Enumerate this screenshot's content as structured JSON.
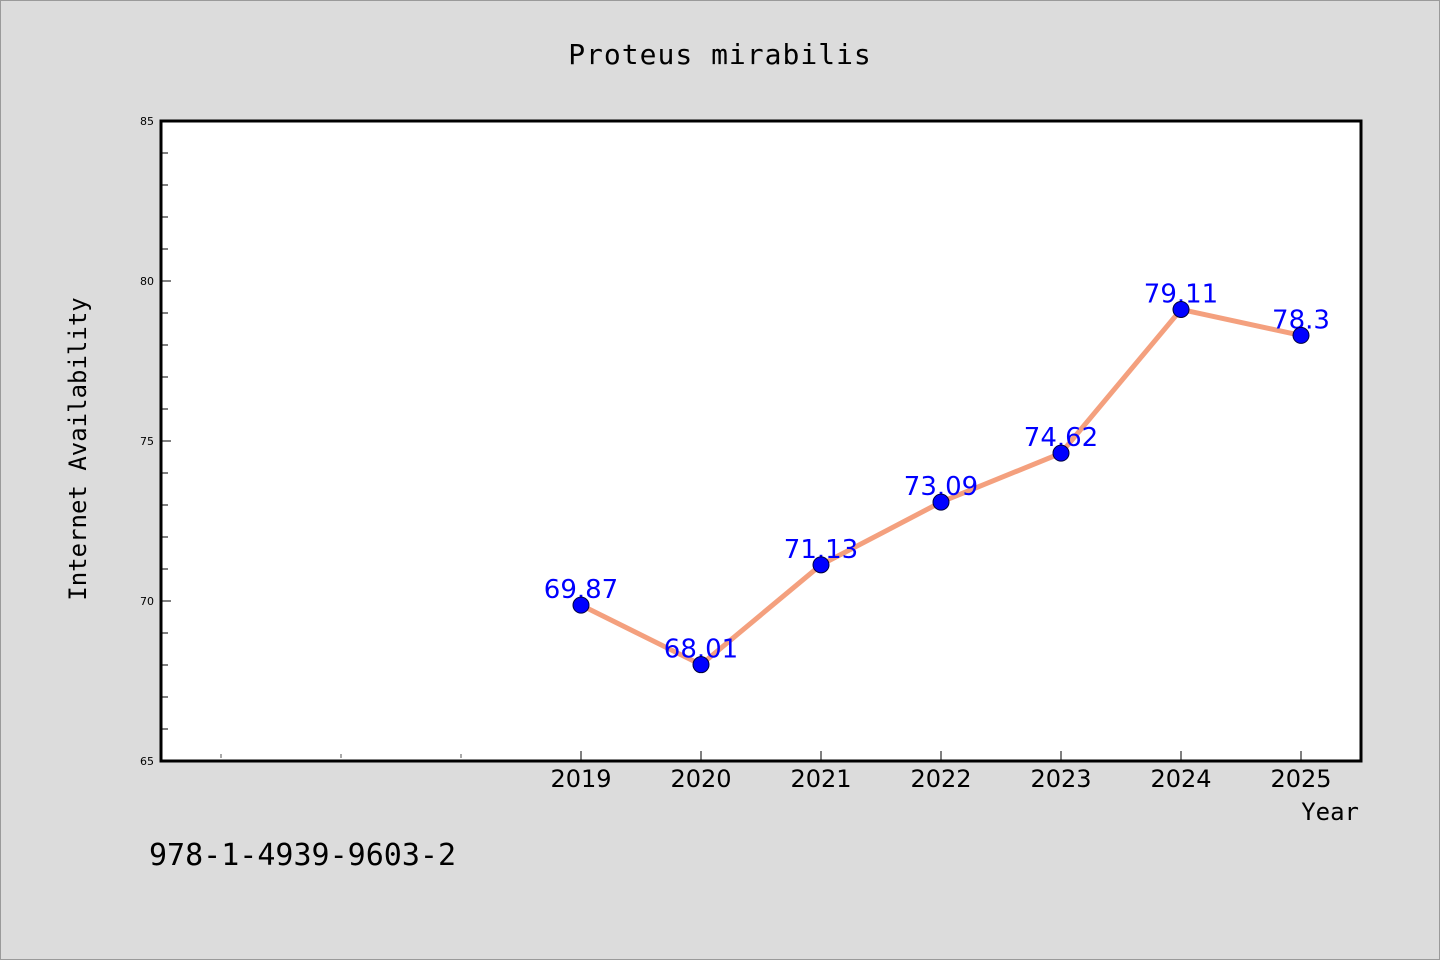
{
  "chart_data": {
    "type": "line",
    "title": "Proteus mirabilis",
    "xlabel": "Year",
    "ylabel": "Internet Availability",
    "categories": [
      "2019",
      "2020",
      "2021",
      "2022",
      "2023",
      "2024",
      "2025"
    ],
    "series": [
      {
        "values": [
          69.87,
          68.01,
          71.13,
          73.09,
          74.62,
          79.11,
          78.3
        ],
        "labels": [
          "69.87",
          "68.01",
          "71.13",
          "73.09",
          "74.62",
          "79.11",
          "78.3"
        ]
      }
    ],
    "ylim": [
      65,
      85
    ],
    "yticks": [
      "65",
      "70",
      "75",
      "80",
      "85"
    ],
    "grid": false,
    "legend": "none",
    "colors": {
      "line": "#f4a07e",
      "marker": "#0000ff",
      "data_label": "#0000ff",
      "background": "#dcdcdc",
      "plot_background": "#ffffff"
    }
  },
  "footer": {
    "isbn": "978-1-4939-9603-2"
  }
}
